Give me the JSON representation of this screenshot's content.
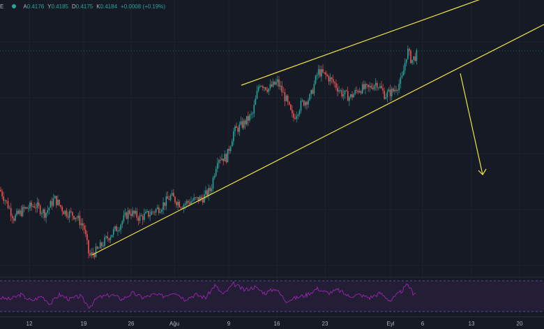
{
  "legend": {
    "symbol": "E",
    "open_label": "A",
    "open": "0.4176",
    "high_label": "Y",
    "high": "0.4185",
    "low_label": "D",
    "low": "0.4175",
    "close_label": "K",
    "close": "0.4184",
    "change": "+0.0008 (+0.19%)"
  },
  "xaxis": {
    "ticks": [
      "12",
      "19",
      "26",
      "Ağu",
      "9",
      "16",
      "23",
      "Eyl",
      "6",
      "13",
      "20"
    ]
  },
  "colors": {
    "background": "#161a25",
    "up": "#26a69a",
    "down": "#ef5350",
    "trendline": "#f0e442",
    "rsi_line": "#9c27b0",
    "rsi_band": "#2a1f3d"
  },
  "chart_data": {
    "type": "candlestick",
    "symbol": "E",
    "last": {
      "open": 0.4176,
      "high": 0.4185,
      "low": 0.4175,
      "close": 0.4184,
      "change": 0.0008,
      "change_pct": 0.19
    },
    "x_ticks": [
      "12",
      "19",
      "26",
      "Ağu",
      "9",
      "16",
      "23",
      "Eyl",
      "6",
      "13",
      "20"
    ],
    "price_path": [
      [
        0,
        0.55
      ],
      [
        8,
        0.5
      ],
      [
        20,
        0.42
      ],
      [
        35,
        0.46
      ],
      [
        50,
        0.48
      ],
      [
        65,
        0.44
      ],
      [
        78,
        0.51
      ],
      [
        92,
        0.45
      ],
      [
        108,
        0.43
      ],
      [
        120,
        0.38
      ],
      [
        128,
        0.24
      ],
      [
        140,
        0.27
      ],
      [
        155,
        0.33
      ],
      [
        170,
        0.38
      ],
      [
        185,
        0.45
      ],
      [
        200,
        0.42
      ],
      [
        215,
        0.44
      ],
      [
        230,
        0.47
      ],
      [
        245,
        0.52
      ],
      [
        260,
        0.48
      ],
      [
        275,
        0.5
      ],
      [
        290,
        0.51
      ],
      [
        302,
        0.55
      ],
      [
        312,
        0.7
      ],
      [
        325,
        0.7
      ],
      [
        335,
        0.82
      ],
      [
        350,
        0.86
      ],
      [
        362,
        0.9
      ],
      [
        372,
        1.05
      ],
      [
        385,
        1.02
      ],
      [
        398,
        1.05
      ],
      [
        410,
        0.97
      ],
      [
        420,
        0.88
      ],
      [
        432,
        0.95
      ],
      [
        445,
        0.98
      ],
      [
        456,
        1.1
      ],
      [
        468,
        1.08
      ],
      [
        478,
        1.05
      ],
      [
        490,
        1.0
      ],
      [
        502,
        0.98
      ],
      [
        515,
        1.02
      ],
      [
        528,
        1.02
      ],
      [
        540,
        1.05
      ],
      [
        552,
        0.99
      ],
      [
        564,
        1.01
      ],
      [
        576,
        1.06
      ],
      [
        584,
        1.2
      ],
      [
        590,
        1.15
      ],
      [
        598,
        1.18
      ]
    ],
    "rsi_path": [
      [
        0,
        45
      ],
      [
        15,
        40
      ],
      [
        30,
        55
      ],
      [
        45,
        35
      ],
      [
        60,
        50
      ],
      [
        72,
        25
      ],
      [
        85,
        55
      ],
      [
        100,
        40
      ],
      [
        115,
        50
      ],
      [
        128,
        15
      ],
      [
        140,
        45
      ],
      [
        160,
        55
      ],
      [
        175,
        40
      ],
      [
        190,
        60
      ],
      [
        205,
        45
      ],
      [
        220,
        55
      ],
      [
        235,
        50
      ],
      [
        250,
        65
      ],
      [
        265,
        40
      ],
      [
        280,
        55
      ],
      [
        295,
        45
      ],
      [
        308,
        85
      ],
      [
        320,
        55
      ],
      [
        335,
        90
      ],
      [
        350,
        70
      ],
      [
        365,
        80
      ],
      [
        380,
        60
      ],
      [
        395,
        75
      ],
      [
        410,
        35
      ],
      [
        425,
        45
      ],
      [
        440,
        55
      ],
      [
        455,
        75
      ],
      [
        470,
        60
      ],
      [
        485,
        70
      ],
      [
        500,
        50
      ],
      [
        515,
        55
      ],
      [
        530,
        45
      ],
      [
        545,
        60
      ],
      [
        560,
        35
      ],
      [
        575,
        65
      ],
      [
        585,
        88
      ],
      [
        592,
        60
      ],
      [
        598,
        65
      ]
    ],
    "rsi_range": [
      0,
      100
    ],
    "annotations": {
      "channel_upper": [
        [
          346,
          122
        ],
        [
          700,
          -5
        ]
      ],
      "channel_lower": [
        [
          132,
          365
        ],
        [
          780,
          35
        ]
      ],
      "channel_top_short": [
        [
          346,
          122
        ],
        [
          590,
          40
        ]
      ],
      "arrow": [
        [
          660,
          105
        ],
        [
          692,
          250
        ]
      ],
      "dotted_price_level_y": 73
    }
  }
}
